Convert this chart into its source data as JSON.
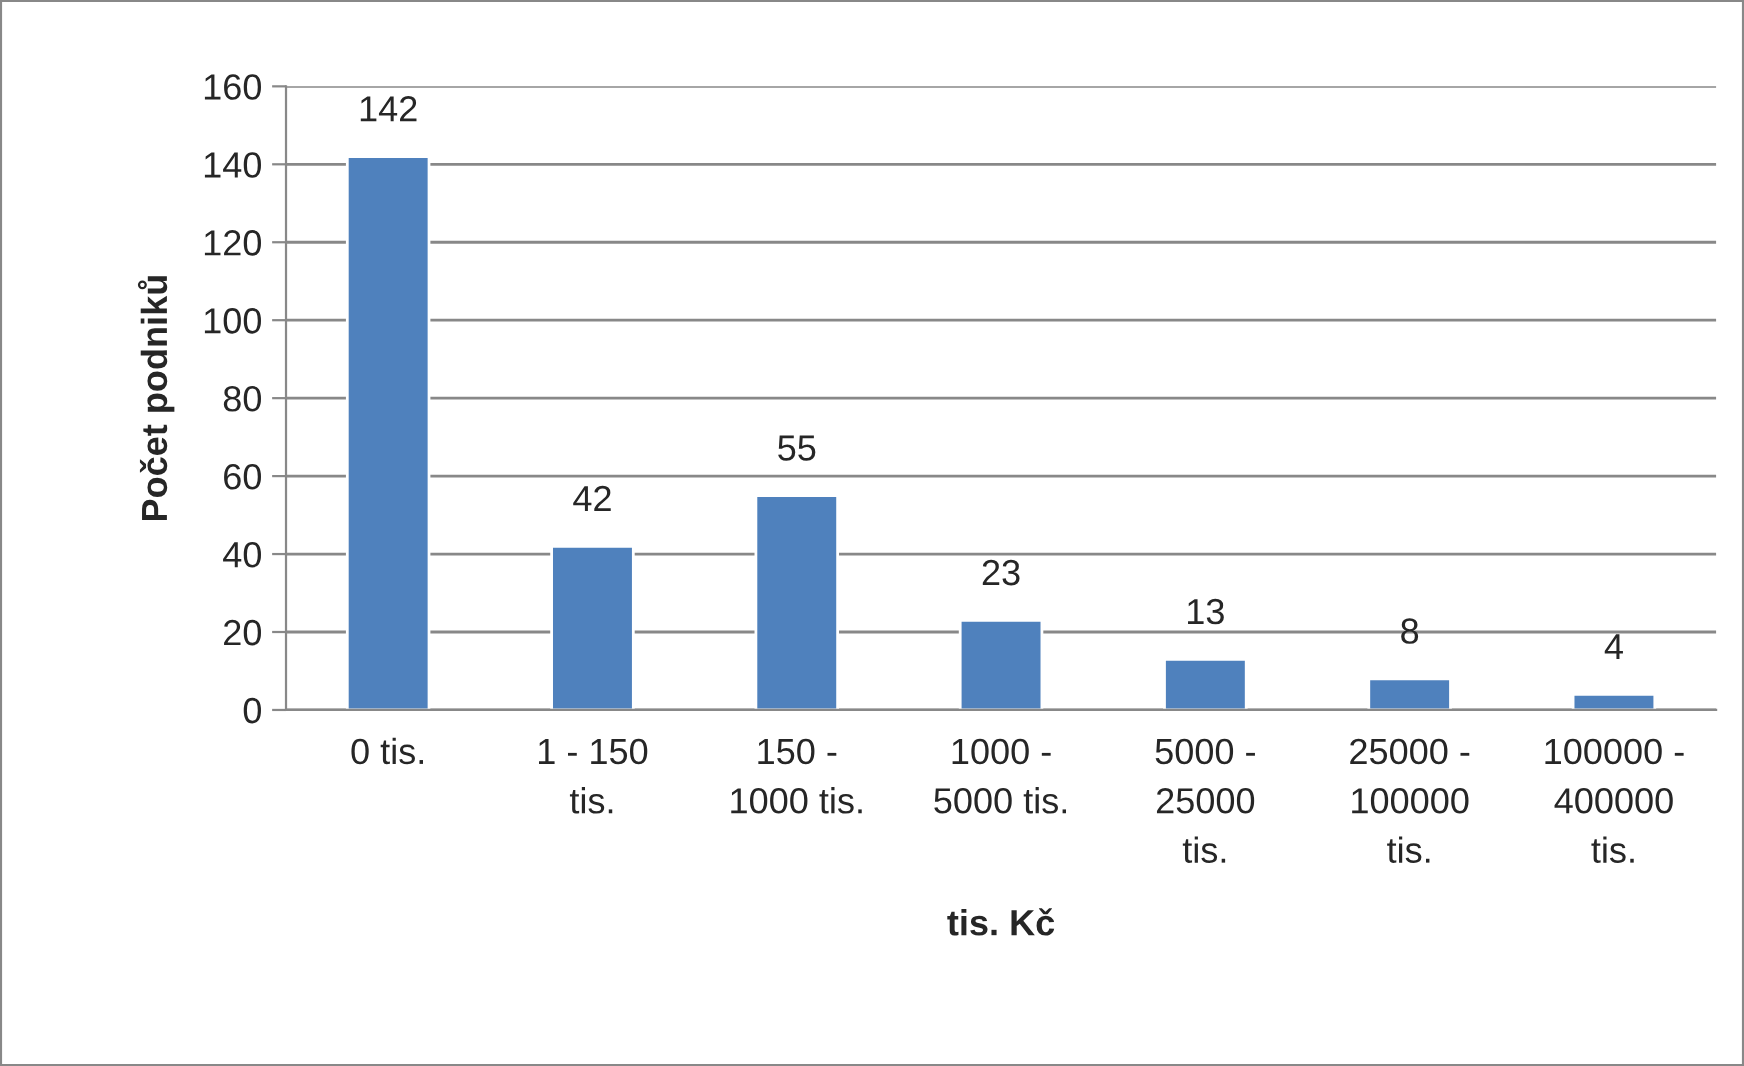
{
  "chart_data": {
    "type": "bar",
    "categories": [
      "0 tis.",
      "1 - 150\ntis.",
      "150 -\n1000 tis.",
      "1000 -\n5000 tis.",
      "5000 -\n25000\ntis.",
      "25000 -\n100000\ntis.",
      "100000 -\n400000\ntis."
    ],
    "values": [
      142,
      42,
      55,
      23,
      13,
      8,
      4
    ],
    "color": "#4f81bd",
    "xlabel": "tis. Kč",
    "ylabel": "Počet podniků",
    "ylim": [
      0,
      160
    ],
    "yticks": [
      0,
      20,
      40,
      60,
      80,
      100,
      120,
      140,
      160
    ],
    "grid": "y",
    "data_labels": true,
    "legend": false
  }
}
